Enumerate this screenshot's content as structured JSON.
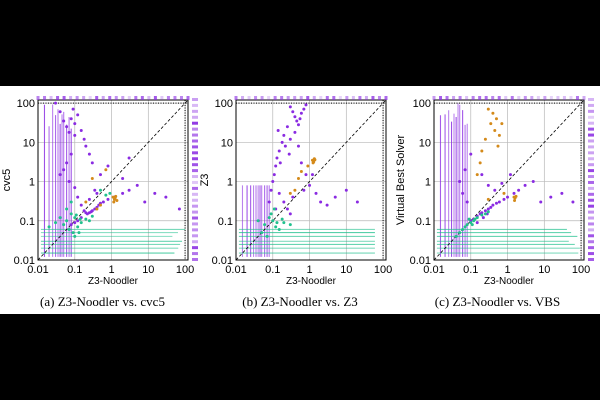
{
  "colors": {
    "purple": "#8a2be2",
    "orange": "#d48a1a",
    "teal": "#22c18e",
    "background": "#000000",
    "panel": "#ffffff",
    "grid": "#b8b8b8",
    "frame": "#000000"
  },
  "captions": [
    "(a) Z3-Noodler vs. cvc5",
    "(b) Z3-Noodler vs. Z3",
    "(c) Z3-Noodler vs. VBS"
  ],
  "chart_data": [
    {
      "type": "scatter",
      "title": "",
      "xlabel": "Z3-Noodler",
      "ylabel": "cvc5",
      "xscale": "log",
      "yscale": "log",
      "xlim": [
        0.01,
        120
      ],
      "ylim": [
        0.01,
        120
      ],
      "xticks": [
        "0.01",
        "0.1",
        "1",
        "10",
        "100"
      ],
      "yticks": [
        "0.01",
        "0.1",
        "1",
        "10",
        "100"
      ],
      "grid": true,
      "diagonal": true,
      "marginal_strips": true,
      "series_colors": [
        "purple",
        "orange",
        "teal"
      ],
      "points": [
        [
          0.03,
          100,
          "purple"
        ],
        [
          0.04,
          60,
          "purple"
        ],
        [
          0.05,
          35,
          "purple"
        ],
        [
          0.06,
          25,
          "purple"
        ],
        [
          0.07,
          18,
          "purple"
        ],
        [
          0.08,
          40,
          "purple"
        ],
        [
          0.09,
          70,
          "purple"
        ],
        [
          0.1,
          30,
          "purple"
        ],
        [
          0.1,
          15,
          "purple"
        ],
        [
          0.12,
          50,
          "purple"
        ],
        [
          0.15,
          20,
          "purple"
        ],
        [
          0.18,
          12,
          "purple"
        ],
        [
          0.2,
          8,
          "purple"
        ],
        [
          0.25,
          5,
          "purple"
        ],
        [
          0.3,
          3,
          "purple"
        ],
        [
          0.08,
          5,
          "purple"
        ],
        [
          0.06,
          3,
          "purple"
        ],
        [
          0.05,
          2,
          "purple"
        ],
        [
          0.04,
          1.5,
          "purple"
        ],
        [
          0.07,
          1,
          "purple"
        ],
        [
          0.1,
          0.7,
          "purple"
        ],
        [
          0.12,
          0.4,
          "purple"
        ],
        [
          0.15,
          0.25,
          "purple"
        ],
        [
          0.18,
          0.18,
          "purple"
        ],
        [
          0.2,
          0.16,
          "purple"
        ],
        [
          0.22,
          0.15,
          "purple"
        ],
        [
          0.25,
          0.16,
          "purple"
        ],
        [
          0.28,
          0.17,
          "purple"
        ],
        [
          0.3,
          0.18,
          "purple"
        ],
        [
          0.35,
          0.2,
          "purple"
        ],
        [
          0.4,
          0.22,
          "purple"
        ],
        [
          0.45,
          0.25,
          "purple"
        ],
        [
          0.5,
          0.28,
          "purple"
        ],
        [
          0.6,
          0.3,
          "purple"
        ],
        [
          0.8,
          0.35,
          "purple"
        ],
        [
          1.2,
          0.4,
          "purple"
        ],
        [
          2,
          0.5,
          "purple"
        ],
        [
          3,
          0.6,
          "purple"
        ],
        [
          5,
          0.8,
          "purple"
        ],
        [
          8,
          0.3,
          "purple"
        ],
        [
          15,
          0.5,
          "purple"
        ],
        [
          30,
          0.4,
          "purple"
        ],
        [
          70,
          0.2,
          "purple"
        ],
        [
          0.15,
          0.12,
          "purple"
        ],
        [
          0.12,
          0.1,
          "purple"
        ],
        [
          0.1,
          0.09,
          "purple"
        ],
        [
          0.08,
          0.08,
          "purple"
        ],
        [
          0.35,
          0.6,
          "purple"
        ],
        [
          0.5,
          1.5,
          "purple"
        ],
        [
          0.8,
          2.5,
          "purple"
        ],
        [
          2,
          1.2,
          "purple"
        ],
        [
          3,
          4,
          "purple"
        ],
        [
          0.25,
          0.35,
          "purple"
        ],
        [
          0.4,
          0.5,
          "purple"
        ],
        [
          0.08,
          0.15,
          "teal"
        ],
        [
          0.1,
          0.12,
          "teal"
        ],
        [
          0.06,
          0.1,
          "teal"
        ],
        [
          0.05,
          0.08,
          "teal"
        ],
        [
          0.07,
          0.06,
          "teal"
        ],
        [
          0.09,
          0.05,
          "teal"
        ],
        [
          0.12,
          0.07,
          "teal"
        ],
        [
          0.15,
          0.09,
          "teal"
        ],
        [
          0.2,
          0.11,
          "teal"
        ],
        [
          0.3,
          0.13,
          "teal"
        ],
        [
          0.5,
          0.6,
          "teal"
        ],
        [
          0.7,
          0.45,
          "teal"
        ],
        [
          0.9,
          0.5,
          "teal"
        ],
        [
          0.04,
          0.12,
          "teal"
        ],
        [
          0.03,
          0.09,
          "teal"
        ],
        [
          0.02,
          0.07,
          "teal"
        ],
        [
          0.1,
          0.04,
          "teal"
        ],
        [
          0.13,
          0.05,
          "teal"
        ],
        [
          0.25,
          0.1,
          "teal"
        ],
        [
          0.06,
          0.2,
          "teal"
        ],
        [
          0.08,
          0.3,
          "teal"
        ],
        [
          0.11,
          0.14,
          "teal"
        ],
        [
          0.14,
          0.11,
          "teal"
        ],
        [
          1.1,
          0.4,
          "orange"
        ],
        [
          1.2,
          0.35,
          "orange"
        ],
        [
          1.3,
          0.42,
          "orange"
        ],
        [
          1.15,
          0.3,
          "orange"
        ],
        [
          1.25,
          0.38,
          "orange"
        ],
        [
          1.4,
          0.33,
          "orange"
        ],
        [
          0.5,
          0.25,
          "orange"
        ],
        [
          0.4,
          0.2,
          "orange"
        ],
        [
          0.7,
          2,
          "orange"
        ],
        [
          0.3,
          1.2,
          "orange"
        ],
        [
          0.2,
          0.3,
          "orange"
        ]
      ]
    },
    {
      "type": "scatter",
      "title": "",
      "xlabel": "Z3-Noodler",
      "ylabel": "Z3",
      "xscale": "log",
      "yscale": "log",
      "xlim": [
        0.01,
        120
      ],
      "ylim": [
        0.01,
        120
      ],
      "xticks": [
        "0.01",
        "0.1",
        "1",
        "10",
        "100"
      ],
      "yticks": [
        "0.01",
        "0.1",
        "1",
        "10",
        "100"
      ],
      "grid": true,
      "diagonal": true,
      "marginal_strips": false,
      "series_colors": [
        "purple",
        "orange",
        "teal"
      ],
      "points": [
        [
          0.3,
          80,
          "purple"
        ],
        [
          0.35,
          60,
          "purple"
        ],
        [
          0.4,
          45,
          "purple"
        ],
        [
          0.45,
          35,
          "purple"
        ],
        [
          0.5,
          28,
          "purple"
        ],
        [
          0.55,
          40,
          "purple"
        ],
        [
          0.6,
          55,
          "purple"
        ],
        [
          0.7,
          70,
          "purple"
        ],
        [
          0.8,
          90,
          "purple"
        ],
        [
          0.25,
          25,
          "purple"
        ],
        [
          0.2,
          15,
          "purple"
        ],
        [
          0.18,
          10,
          "purple"
        ],
        [
          0.15,
          6,
          "purple"
        ],
        [
          0.13,
          4,
          "purple"
        ],
        [
          0.12,
          2.5,
          "purple"
        ],
        [
          0.11,
          1.5,
          "purple"
        ],
        [
          0.1,
          1,
          "purple"
        ],
        [
          0.09,
          0.6,
          "purple"
        ],
        [
          0.08,
          0.3,
          "purple"
        ],
        [
          0.3,
          12,
          "purple"
        ],
        [
          0.4,
          18,
          "purple"
        ],
        [
          0.22,
          8,
          "purple"
        ],
        [
          0.5,
          8,
          "purple"
        ],
        [
          0.6,
          3,
          "purple"
        ],
        [
          0.8,
          1.5,
          "purple"
        ],
        [
          1,
          0.8,
          "purple"
        ],
        [
          1.5,
          0.5,
          "purple"
        ],
        [
          2,
          0.3,
          "purple"
        ],
        [
          3,
          0.25,
          "purple"
        ],
        [
          5,
          0.4,
          "purple"
        ],
        [
          10,
          0.6,
          "purple"
        ],
        [
          20,
          0.3,
          "purple"
        ],
        [
          0.2,
          0.3,
          "purple"
        ],
        [
          0.25,
          0.2,
          "purple"
        ],
        [
          0.3,
          0.15,
          "purple"
        ],
        [
          0.15,
          0.5,
          "purple"
        ],
        [
          0.12,
          0.2,
          "purple"
        ],
        [
          0.35,
          0.4,
          "purple"
        ],
        [
          0.7,
          0.6,
          "purple"
        ],
        [
          1.2,
          1.5,
          "purple"
        ],
        [
          0.16,
          3,
          "purple"
        ],
        [
          0.14,
          20,
          "purple"
        ],
        [
          0.28,
          5,
          "purple"
        ],
        [
          0.08,
          0.12,
          "teal"
        ],
        [
          0.1,
          0.1,
          "teal"
        ],
        [
          0.06,
          0.08,
          "teal"
        ],
        [
          0.12,
          0.07,
          "teal"
        ],
        [
          0.15,
          0.06,
          "teal"
        ],
        [
          0.05,
          0.05,
          "teal"
        ],
        [
          0.07,
          0.04,
          "teal"
        ],
        [
          0.2,
          0.09,
          "teal"
        ],
        [
          0.09,
          0.15,
          "teal"
        ],
        [
          0.11,
          0.2,
          "teal"
        ],
        [
          0.04,
          0.1,
          "teal"
        ],
        [
          0.3,
          0.08,
          "teal"
        ],
        [
          0.13,
          0.09,
          "teal"
        ],
        [
          0.18,
          0.11,
          "teal"
        ],
        [
          1.2,
          3.5,
          "orange"
        ],
        [
          1.3,
          3.2,
          "orange"
        ],
        [
          1.4,
          3.6,
          "orange"
        ],
        [
          1.25,
          3,
          "orange"
        ],
        [
          1.35,
          3.8,
          "orange"
        ],
        [
          0.9,
          2.5,
          "orange"
        ],
        [
          0.6,
          1.8,
          "orange"
        ],
        [
          0.4,
          0.6,
          "orange"
        ],
        [
          0.5,
          1.2,
          "orange"
        ],
        [
          0.3,
          0.5,
          "orange"
        ]
      ]
    },
    {
      "type": "scatter",
      "title": "",
      "xlabel": "Z3-Noodler",
      "ylabel": "Virtual Best Solver",
      "xscale": "log",
      "yscale": "log",
      "xlim": [
        0.01,
        120
      ],
      "ylim": [
        0.01,
        120
      ],
      "xticks": [
        "0.01",
        "0.1",
        "1",
        "10",
        "100"
      ],
      "yticks": [
        "0.01",
        "0.1",
        "1",
        "10",
        "100"
      ],
      "grid": true,
      "diagonal": true,
      "marginal_strips": true,
      "series_colors": [
        "purple",
        "orange",
        "teal"
      ],
      "points": [
        [
          0.1,
          0.1,
          "purple"
        ],
        [
          0.12,
          0.11,
          "purple"
        ],
        [
          0.15,
          0.13,
          "purple"
        ],
        [
          0.18,
          0.15,
          "purple"
        ],
        [
          0.2,
          0.16,
          "purple"
        ],
        [
          0.25,
          0.18,
          "purple"
        ],
        [
          0.3,
          0.2,
          "purple"
        ],
        [
          0.35,
          0.22,
          "purple"
        ],
        [
          0.4,
          0.25,
          "purple"
        ],
        [
          0.5,
          0.28,
          "purple"
        ],
        [
          0.6,
          0.3,
          "purple"
        ],
        [
          0.8,
          0.35,
          "purple"
        ],
        [
          1,
          0.4,
          "purple"
        ],
        [
          1.5,
          0.5,
          "purple"
        ],
        [
          2,
          0.6,
          "purple"
        ],
        [
          3,
          0.8,
          "purple"
        ],
        [
          5,
          1,
          "purple"
        ],
        [
          8,
          0.3,
          "purple"
        ],
        [
          15,
          0.4,
          "purple"
        ],
        [
          30,
          0.5,
          "purple"
        ],
        [
          60,
          0.3,
          "purple"
        ],
        [
          0.08,
          0.3,
          "purple"
        ],
        [
          0.06,
          0.5,
          "purple"
        ],
        [
          0.05,
          1,
          "purple"
        ],
        [
          0.07,
          2,
          "purple"
        ],
        [
          0.1,
          5,
          "purple"
        ],
        [
          0.2,
          1.5,
          "purple"
        ],
        [
          0.3,
          0.8,
          "purple"
        ],
        [
          0.45,
          0.6,
          "purple"
        ],
        [
          0.7,
          0.9,
          "purple"
        ],
        [
          1.2,
          1.5,
          "purple"
        ],
        [
          0.15,
          0.09,
          "purple"
        ],
        [
          0.22,
          0.12,
          "purple"
        ],
        [
          0.28,
          0.15,
          "purple"
        ],
        [
          0.3,
          70,
          "orange"
        ],
        [
          0.4,
          55,
          "orange"
        ],
        [
          0.5,
          40,
          "orange"
        ],
        [
          0.35,
          30,
          "orange"
        ],
        [
          0.45,
          20,
          "orange"
        ],
        [
          0.25,
          12,
          "orange"
        ],
        [
          0.6,
          15,
          "orange"
        ],
        [
          0.2,
          6,
          "orange"
        ],
        [
          0.55,
          8,
          "orange"
        ],
        [
          0.7,
          30,
          "orange"
        ],
        [
          0.18,
          3,
          "orange"
        ],
        [
          0.15,
          1.5,
          "orange"
        ],
        [
          1.5,
          0.4,
          "orange"
        ],
        [
          1.6,
          0.38,
          "orange"
        ],
        [
          1.7,
          0.42,
          "orange"
        ],
        [
          1.55,
          0.33,
          "orange"
        ],
        [
          0.3,
          0.35,
          "orange"
        ],
        [
          0.8,
          0.5,
          "orange"
        ],
        [
          0.08,
          0.08,
          "teal"
        ],
        [
          0.1,
          0.09,
          "teal"
        ],
        [
          0.06,
          0.06,
          "teal"
        ],
        [
          0.12,
          0.1,
          "teal"
        ],
        [
          0.15,
          0.12,
          "teal"
        ],
        [
          0.05,
          0.05,
          "teal"
        ],
        [
          0.07,
          0.07,
          "teal"
        ],
        [
          0.2,
          0.14,
          "teal"
        ],
        [
          0.09,
          0.11,
          "teal"
        ],
        [
          0.25,
          0.15,
          "teal"
        ],
        [
          0.04,
          0.04,
          "teal"
        ],
        [
          0.3,
          0.17,
          "teal"
        ],
        [
          0.11,
          0.08,
          "teal"
        ],
        [
          0.13,
          0.11,
          "teal"
        ]
      ]
    }
  ]
}
